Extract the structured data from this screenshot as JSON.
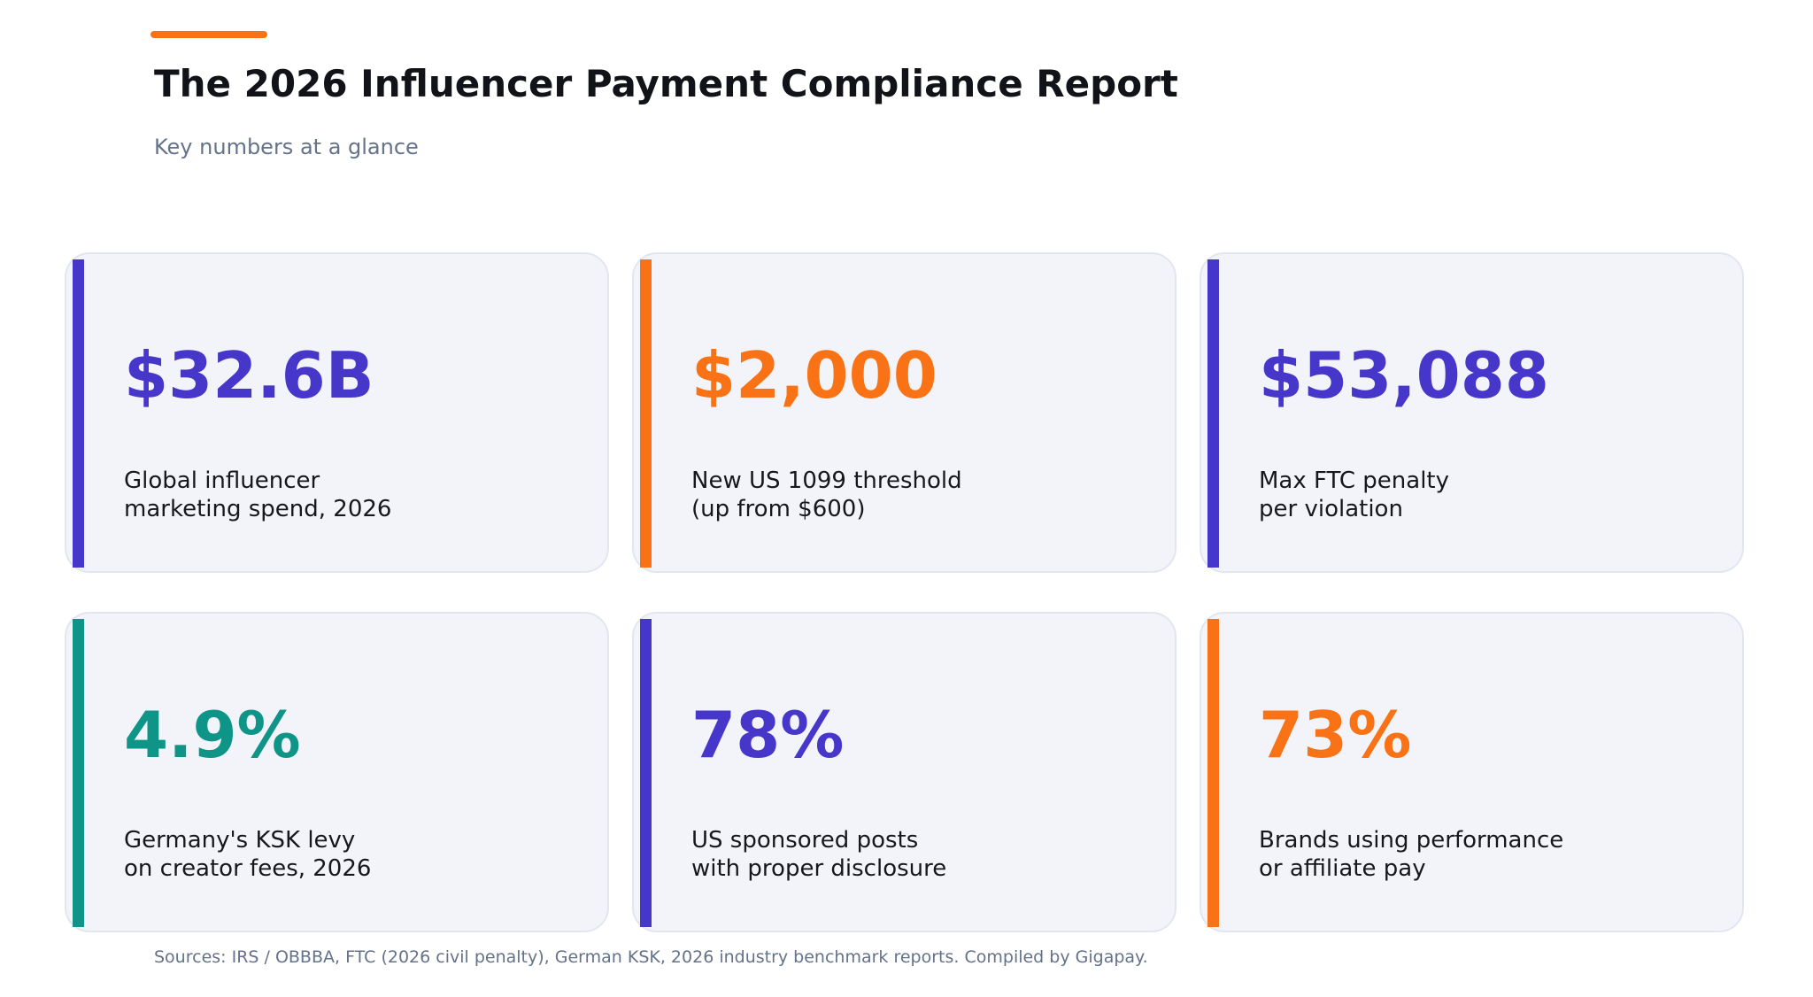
{
  "header": {
    "title": "The 2026 Influencer Payment Compliance Report",
    "subtitle": "Key numbers at a glance"
  },
  "cards": [
    {
      "value": "$32.6B",
      "label": [
        "Global influencer",
        "marketing spend, 2026"
      ],
      "color": "#4636c9"
    },
    {
      "value": "$2,000",
      "label": [
        "New US 1099 threshold",
        "(up from $600)"
      ],
      "color": "#f97316"
    },
    {
      "value": "$53,088",
      "label": [
        "Max FTC penalty",
        "per violation"
      ],
      "color": "#4636c9"
    },
    {
      "value": "4.9%",
      "label": [
        "Germany's KSK levy",
        "on creator fees, 2026"
      ],
      "color": "#0f9488"
    },
    {
      "value": "78%",
      "label": [
        "US sponsored posts",
        "with proper disclosure"
      ],
      "color": "#4636c9"
    },
    {
      "value": "73%",
      "label": [
        "Brands using performance",
        "or affiliate pay"
      ],
      "color": "#f97316"
    }
  ],
  "footer": {
    "sources": "Sources: IRS / OBBBA, FTC (2026 civil penalty), German KSK, 2026 industry benchmark reports. Compiled by Gigapay."
  }
}
